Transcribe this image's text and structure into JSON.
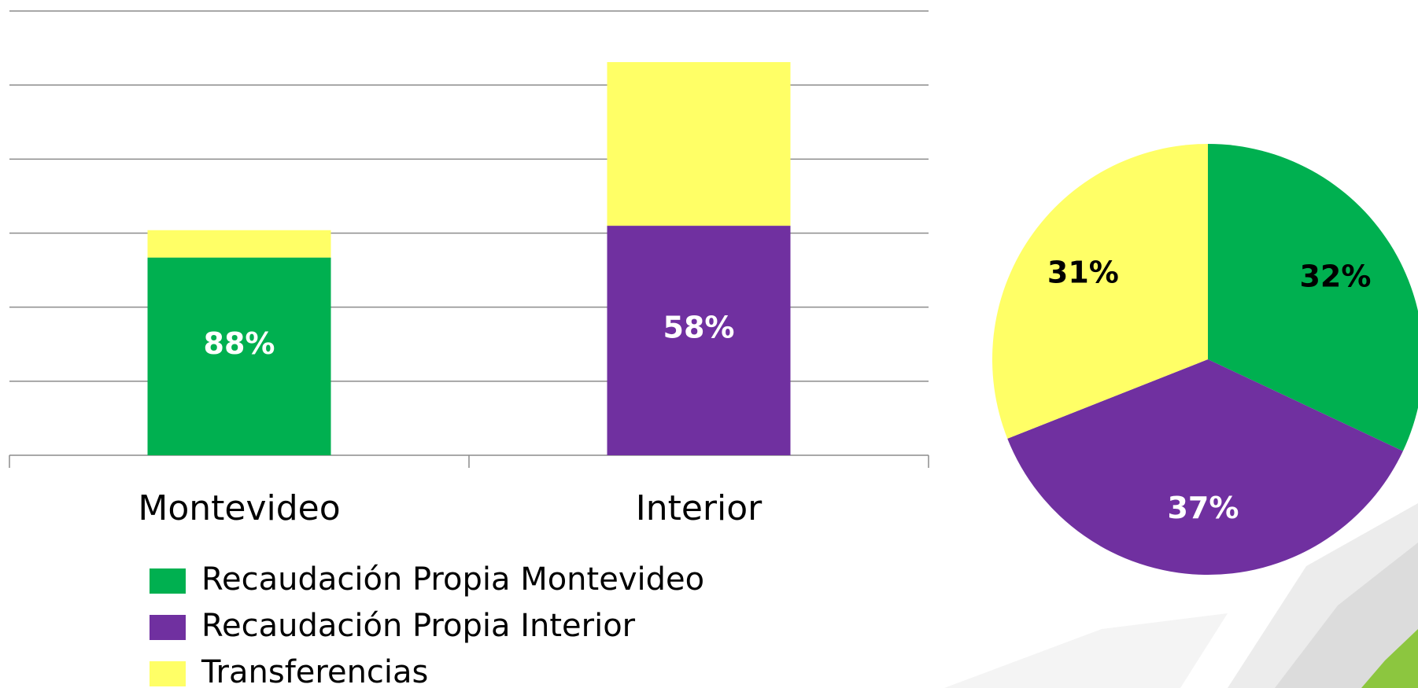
{
  "chart_data": [
    {
      "type": "bar",
      "stacked": true,
      "categories": [
        "Montevideo",
        "Interior"
      ],
      "series": [
        {
          "name": "Recaudación Propia Montevideo",
          "color": "#00b050",
          "values": [
            2.67,
            null
          ],
          "share_labels": [
            "88%",
            null
          ],
          "label_color": "#ffffff"
        },
        {
          "name": "Recaudación Propia Interior",
          "color": "#7030a0",
          "values": [
            null,
            3.1
          ],
          "share_labels": [
            null,
            "58%"
          ],
          "label_color": "#ffffff"
        },
        {
          "name": "Transferencias",
          "color": "#ffff66",
          "values": [
            0.37,
            2.21
          ],
          "share_labels": [
            null,
            null
          ],
          "label_color": "#000000"
        }
      ],
      "ylim": [
        0,
        6
      ],
      "yticks": [
        0,
        1,
        2,
        3,
        4,
        5,
        6
      ],
      "grid": true,
      "legend": "bottom"
    },
    {
      "type": "pie",
      "values": [
        32,
        37,
        31
      ],
      "value_labels": [
        "32%",
        "37%",
        "31%"
      ],
      "colors": [
        "#00b050",
        "#7030a0",
        "#ffff66"
      ],
      "label_colors": [
        "#000000",
        "#ffffff",
        "#000000"
      ]
    }
  ]
}
